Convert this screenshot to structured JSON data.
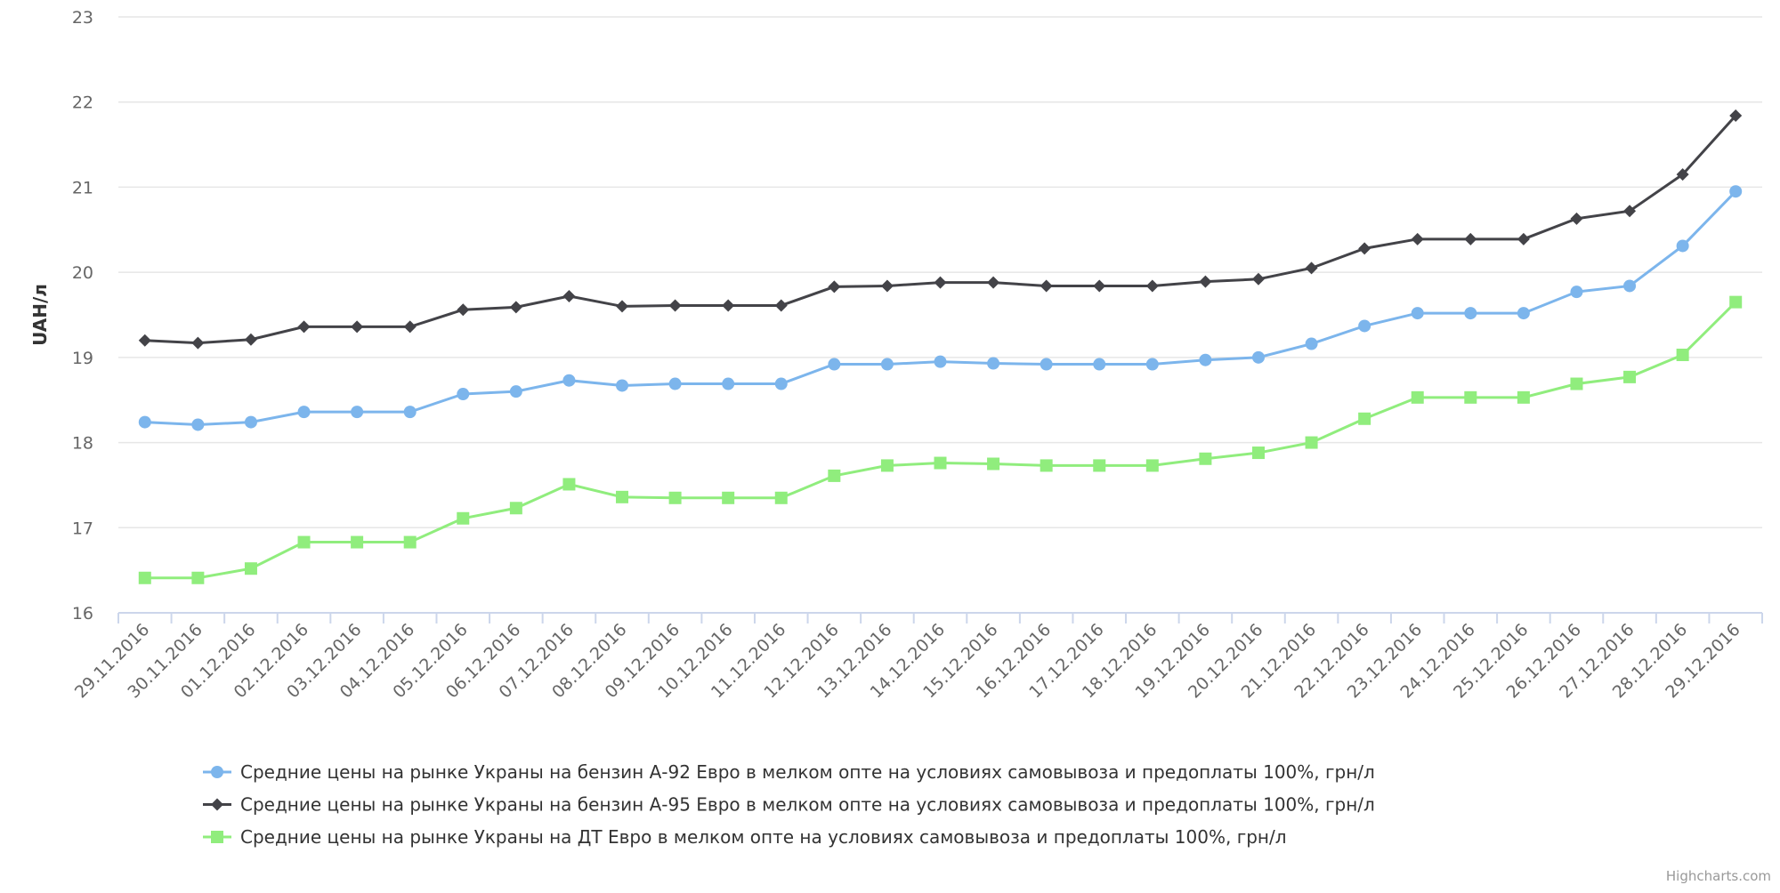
{
  "chart_data": {
    "type": "line",
    "title": "",
    "xlabel": "",
    "ylabel": "UAH/л",
    "ylim": [
      16,
      23
    ],
    "yticks": [
      16,
      17,
      18,
      19,
      20,
      21,
      22,
      23
    ],
    "grid": true,
    "legend_position": "bottom",
    "categories": [
      "29.11.2016",
      "30.11.2016",
      "01.12.2016",
      "02.12.2016",
      "03.12.2016",
      "04.12.2016",
      "05.12.2016",
      "06.12.2016",
      "07.12.2016",
      "08.12.2016",
      "09.12.2016",
      "10.12.2016",
      "11.12.2016",
      "12.12.2016",
      "13.12.2016",
      "14.12.2016",
      "15.12.2016",
      "16.12.2016",
      "17.12.2016",
      "18.12.2016",
      "19.12.2016",
      "20.12.2016",
      "21.12.2016",
      "22.12.2016",
      "23.12.2016",
      "24.12.2016",
      "25.12.2016",
      "26.12.2016",
      "27.12.2016",
      "28.12.2016",
      "29.12.2016"
    ],
    "series": [
      {
        "name": "Средние цены на рынке Украны на бензин А-92 Евро в мелком опте на условиях самовывоза и предоплаты 100%, грн/л",
        "color": "#7cb5ec",
        "marker": "circle",
        "values": [
          18.24,
          18.21,
          18.24,
          18.36,
          18.36,
          18.36,
          18.57,
          18.6,
          18.73,
          18.67,
          18.69,
          18.69,
          18.69,
          18.92,
          18.92,
          18.95,
          18.93,
          18.92,
          18.92,
          18.92,
          18.97,
          19.0,
          19.16,
          19.37,
          19.52,
          19.52,
          19.52,
          19.77,
          19.84,
          20.31,
          20.95
        ]
      },
      {
        "name": "Средние цены на рынке Украны на бензин А-95 Евро в мелком опте на условиях самовывоза и предоплаты 100%, грн/л",
        "color": "#434348",
        "marker": "diamond",
        "values": [
          19.2,
          19.17,
          19.21,
          19.36,
          19.36,
          19.36,
          19.56,
          19.59,
          19.72,
          19.6,
          19.61,
          19.61,
          19.61,
          19.83,
          19.84,
          19.88,
          19.88,
          19.84,
          19.84,
          19.84,
          19.89,
          19.92,
          20.05,
          20.28,
          20.39,
          20.39,
          20.39,
          20.63,
          20.72,
          21.15,
          21.84
        ]
      },
      {
        "name": "Средние цены на рынке Украны на ДТ Евро в мелком опте на условиях самовывоза и предоплаты 100%, грн/л",
        "color": "#90ed7d",
        "marker": "square",
        "values": [
          16.41,
          16.41,
          16.52,
          16.83,
          16.83,
          16.83,
          17.11,
          17.23,
          17.51,
          17.36,
          17.35,
          17.35,
          17.35,
          17.61,
          17.73,
          17.76,
          17.75,
          17.73,
          17.73,
          17.73,
          17.81,
          17.88,
          18.0,
          18.28,
          18.53,
          18.53,
          18.53,
          18.69,
          18.77,
          19.03,
          19.65
        ]
      }
    ],
    "credits": "Highcharts.com"
  }
}
